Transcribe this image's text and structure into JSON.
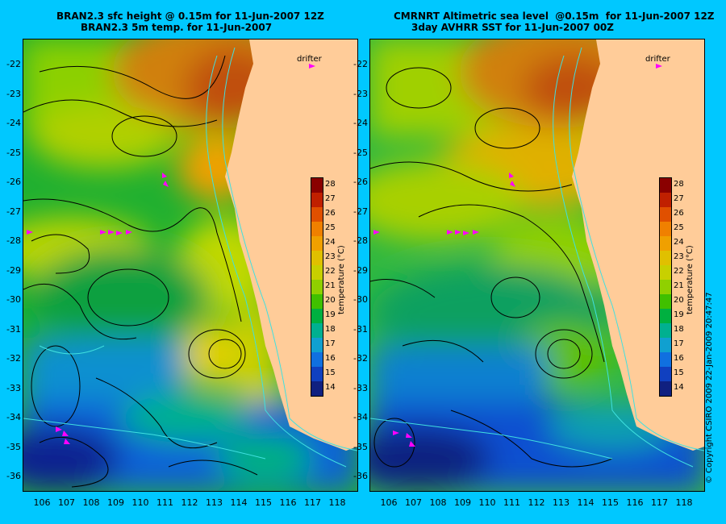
{
  "left_panel": {
    "title_line1": "BRAN2.3 sfc height @ 0.15m for 11-Jun-2007 12Z",
    "title_line2": "BRAN2.3 5m temp. for 11-Jun-2007"
  },
  "right_panel": {
    "title_line1": "CMRNRT Altimetric sea level  @0.15m  for 11-Jun-2007 12Z",
    "title_line2": "3day AVHRR SST for 11-Jun-2007 00Z"
  },
  "drifter_label": "drifter",
  "colorbar": {
    "title": "temperature (°C)",
    "ticks": [
      "28",
      "27",
      "26",
      "25",
      "24",
      "23",
      "22",
      "21",
      "20",
      "19",
      "18",
      "17",
      "16",
      "15",
      "14"
    ],
    "colors": [
      "#8a0000",
      "#c02000",
      "#e05000",
      "#f08000",
      "#f0a000",
      "#e0c000",
      "#c8d000",
      "#90d000",
      "#40c000",
      "#00b040",
      "#00b090",
      "#10a0d0",
      "#1070e0",
      "#1040c0",
      "#102080"
    ]
  },
  "y_axis_labels": [
    "-22",
    "-23",
    "-24",
    "-25",
    "-26",
    "-27",
    "-28",
    "-29",
    "-30",
    "-31",
    "-32",
    "-33",
    "-34",
    "-35",
    "-36"
  ],
  "x_axis_labels": [
    "106",
    "107",
    "108",
    "109",
    "110",
    "111",
    "112",
    "113",
    "114",
    "115",
    "116",
    "117",
    "118"
  ],
  "copyright": "© Copyright CSIRO 2009   22-Jan-2009 20:47:47",
  "colors": {
    "background": "#00c8ff",
    "land": "#ffcc99",
    "drifter": "#ff00ff"
  }
}
